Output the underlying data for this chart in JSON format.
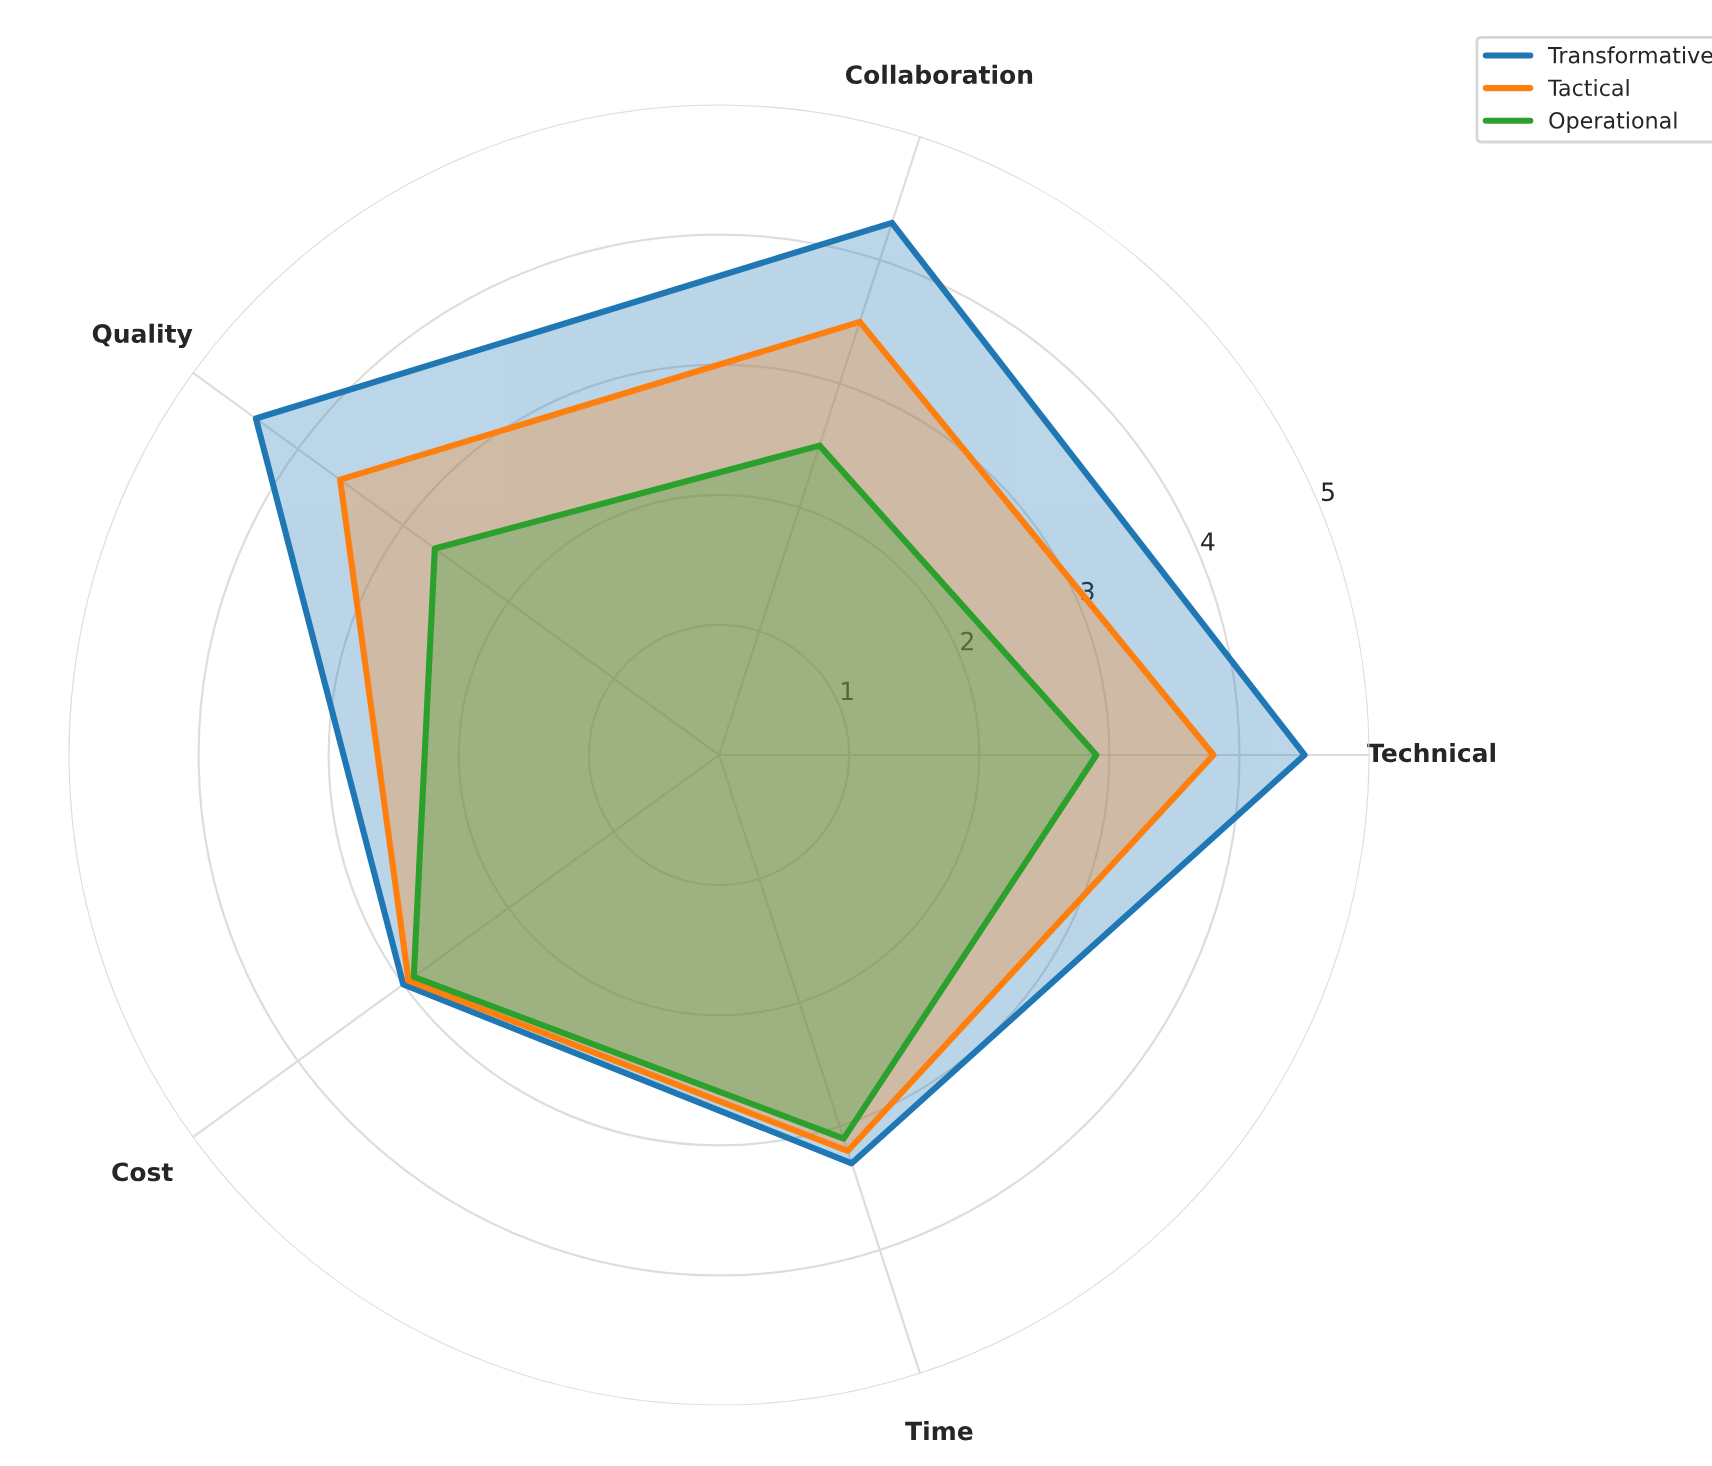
{
  "chart_data": {
    "type": "radar",
    "categories": [
      "Collaboration",
      "Technical",
      "Time",
      "Cost",
      "Quality"
    ],
    "series": [
      {
        "name": "Transformative",
        "color": "#1f77b4",
        "values": [
          4.3,
          4.5,
          3.3,
          3.0,
          4.4
        ]
      },
      {
        "name": "Tactical",
        "color": "#ff7f0e",
        "values": [
          3.5,
          3.8,
          3.2,
          2.95,
          3.6
        ]
      },
      {
        "name": "Operational",
        "color": "#2ca02c",
        "values": [
          2.5,
          2.9,
          3.1,
          2.9,
          2.7
        ]
      }
    ],
    "ylim": [
      0,
      5
    ],
    "yticks": [
      1,
      2,
      3,
      4,
      5
    ],
    "grid": true,
    "legend": "top right"
  }
}
